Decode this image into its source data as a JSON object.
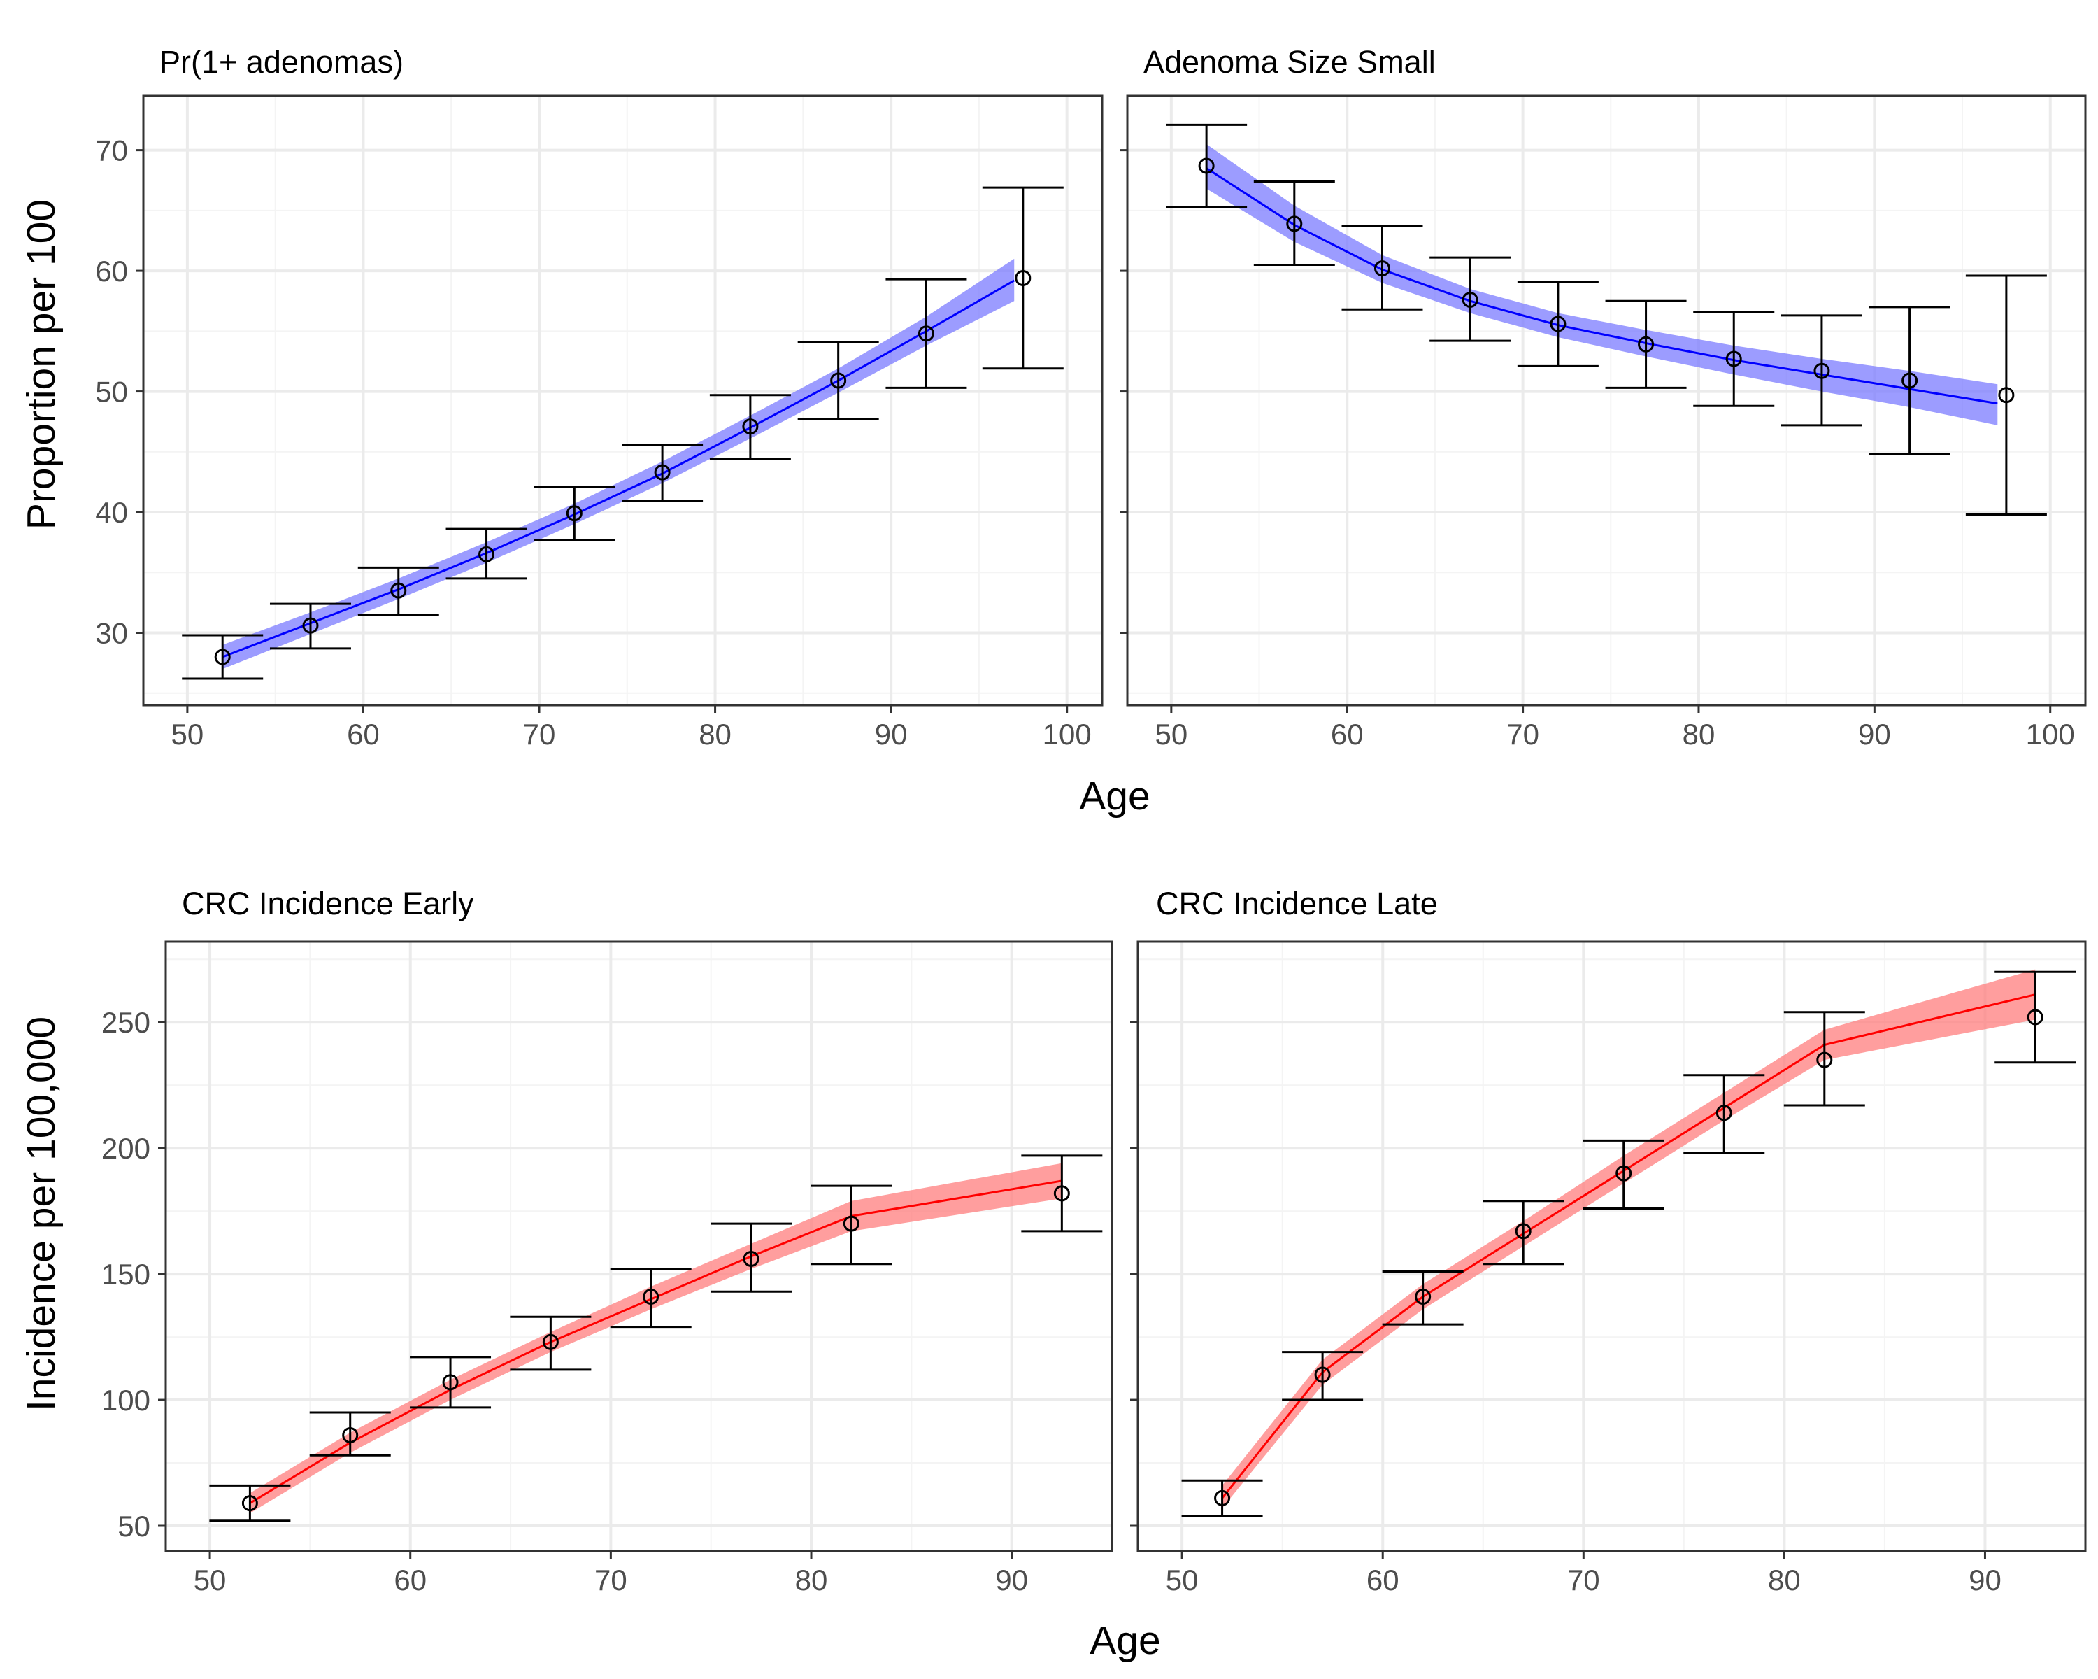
{
  "figure": {
    "top_row": {
      "x_axis_title": "Age",
      "y_axis_title": "Proportion per 100"
    },
    "bottom_row": {
      "x_axis_title": "Age",
      "y_axis_title": "Incidence per 100,000"
    }
  },
  "colors": {
    "top_line": "#0000ff",
    "top_ribbon": "#7b7bff",
    "bottom_line": "#ff0000",
    "bottom_ribbon": "#ff7d7d",
    "points_and_error_bars": "#000000",
    "grid_major": "#ebebeb",
    "grid_minor": "#f4f4f4",
    "panel_border": "#333333"
  },
  "chart_data": [
    {
      "type": "line",
      "title": "Pr(1+ adenomas)",
      "xlabel": "Age",
      "ylabel": "Proportion per 100",
      "xlim": [
        47.5,
        102
      ],
      "ylim": [
        24,
        74.5
      ],
      "x_ticks": [
        50,
        60,
        70,
        80,
        90,
        100
      ],
      "x_tick_labels": [
        "50",
        "60",
        "70",
        "80",
        "90",
        "100"
      ],
      "y_ticks": [
        30,
        40,
        50,
        60,
        70
      ],
      "y_tick_labels": [
        "30",
        "40",
        "50",
        "60",
        "70"
      ],
      "grid": true,
      "series": [
        {
          "kind": "model_fit_with_band",
          "x": [
            52,
            57,
            62,
            67,
            72,
            77,
            82,
            87,
            92,
            97
          ],
          "y": [
            28.0,
            30.8,
            33.6,
            36.6,
            39.8,
            43.2,
            47.0,
            50.9,
            55.0,
            59.2
          ],
          "lower": [
            27.0,
            29.9,
            32.8,
            35.8,
            39.0,
            42.4,
            46.1,
            49.9,
            53.8,
            57.5
          ],
          "upper": [
            29.0,
            31.7,
            34.5,
            37.5,
            40.7,
            44.2,
            48.0,
            51.9,
            56.2,
            61.0
          ]
        },
        {
          "kind": "observed_with_error_bars",
          "x": [
            52,
            57,
            62,
            67,
            72,
            77,
            82,
            87,
            92,
            97.5
          ],
          "y": [
            28.0,
            30.6,
            33.5,
            36.5,
            39.9,
            43.3,
            47.1,
            50.9,
            54.8,
            59.4
          ],
          "lower": [
            26.2,
            28.7,
            31.5,
            34.5,
            37.7,
            40.9,
            44.4,
            47.7,
            50.3,
            51.9
          ],
          "upper": [
            29.8,
            32.4,
            35.4,
            38.6,
            42.1,
            45.6,
            49.7,
            54.1,
            59.3,
            66.9
          ]
        }
      ]
    },
    {
      "type": "line",
      "title": "Adenoma Size Small",
      "xlabel": "Age",
      "ylabel": "",
      "xlim": [
        47.5,
        102
      ],
      "ylim": [
        24,
        74.5
      ],
      "x_ticks": [
        50,
        60,
        70,
        80,
        90,
        100
      ],
      "x_tick_labels": [
        "50",
        "60",
        "70",
        "80",
        "90",
        "100"
      ],
      "y_ticks": [
        30,
        40,
        50,
        60,
        70
      ],
      "y_tick_labels": [],
      "grid": true,
      "series": [
        {
          "kind": "model_fit_with_band",
          "x": [
            52,
            57,
            62,
            67,
            72,
            77,
            82,
            87,
            92,
            97
          ],
          "y": [
            68.5,
            63.8,
            60.1,
            57.5,
            55.5,
            54.0,
            52.6,
            51.4,
            50.2,
            49.0
          ],
          "lower": [
            66.8,
            62.4,
            59.0,
            56.5,
            54.5,
            52.9,
            51.4,
            50.0,
            48.7,
            47.2
          ],
          "upper": [
            70.5,
            65.4,
            61.3,
            58.5,
            56.5,
            55.1,
            53.8,
            52.7,
            51.7,
            50.6
          ]
        },
        {
          "kind": "observed_with_error_bars",
          "x": [
            52,
            57,
            62,
            67,
            72,
            77,
            82,
            87,
            92,
            97.5
          ],
          "y": [
            68.7,
            63.9,
            60.2,
            57.6,
            55.6,
            53.9,
            52.7,
            51.7,
            50.9,
            49.7
          ],
          "lower": [
            65.3,
            60.5,
            56.8,
            54.2,
            52.1,
            50.3,
            48.8,
            47.2,
            44.8,
            39.8
          ],
          "upper": [
            72.1,
            67.4,
            63.7,
            61.1,
            59.1,
            57.5,
            56.6,
            56.3,
            57.0,
            59.6
          ]
        }
      ]
    },
    {
      "type": "line",
      "title": "CRC Incidence Early",
      "xlabel": "Age",
      "ylabel": "Incidence per 100,000",
      "xlim": [
        47.8,
        95
      ],
      "ylim": [
        40,
        282
      ],
      "x_ticks": [
        50,
        60,
        70,
        80,
        90
      ],
      "x_tick_labels": [
        "50",
        "60",
        "70",
        "80",
        "90"
      ],
      "y_ticks": [
        50,
        100,
        150,
        200,
        250
      ],
      "y_tick_labels": [
        "50",
        "100",
        "150",
        "200",
        "250"
      ],
      "grid": true,
      "series": [
        {
          "kind": "model_fit_with_band",
          "x": [
            52,
            57,
            62,
            67,
            72,
            77,
            82,
            92.5
          ],
          "y": [
            59,
            83,
            104,
            123,
            140,
            157,
            173,
            187
          ],
          "lower": [
            55,
            79,
            100,
            119,
            136,
            152,
            167,
            180
          ],
          "upper": [
            63,
            87,
            108,
            127,
            145,
            162,
            179,
            194
          ]
        },
        {
          "kind": "observed_with_error_bars",
          "x": [
            52,
            57,
            62,
            67,
            72,
            77,
            82,
            92.5
          ],
          "y": [
            59,
            86,
            107,
            123,
            141,
            156,
            170,
            182
          ],
          "lower": [
            52,
            78,
            97,
            112,
            129,
            143,
            154,
            167
          ],
          "upper": [
            66,
            95,
            117,
            133,
            152,
            170,
            185,
            197
          ]
        }
      ]
    },
    {
      "type": "line",
      "title": "CRC Incidence Late",
      "xlabel": "Age",
      "ylabel": "",
      "xlim": [
        47.8,
        95
      ],
      "ylim": [
        40,
        282
      ],
      "x_ticks": [
        50,
        60,
        70,
        80,
        90
      ],
      "x_tick_labels": [
        "50",
        "60",
        "70",
        "80",
        "90"
      ],
      "y_ticks": [
        50,
        100,
        150,
        200,
        250
      ],
      "y_tick_labels": [],
      "grid": true,
      "series": [
        {
          "kind": "model_fit_with_band",
          "x": [
            52,
            57,
            62,
            67,
            72,
            77,
            82,
            92.5
          ],
          "y": [
            61,
            111,
            141,
            166,
            191,
            216,
            241,
            261
          ],
          "lower": [
            57,
            106,
            136,
            161,
            186,
            211,
            235,
            251
          ],
          "upper": [
            66,
            116,
            146,
            171,
            197,
            222,
            247,
            271
          ]
        },
        {
          "kind": "observed_with_error_bars",
          "x": [
            52,
            57,
            62,
            67,
            72,
            77,
            82,
            92.5
          ],
          "y": [
            61,
            110,
            141,
            167,
            190,
            214,
            235,
            252
          ],
          "lower": [
            54,
            100,
            130,
            154,
            176,
            198,
            217,
            234
          ],
          "upper": [
            68,
            119,
            151,
            179,
            203,
            229,
            254,
            270
          ]
        }
      ]
    }
  ]
}
